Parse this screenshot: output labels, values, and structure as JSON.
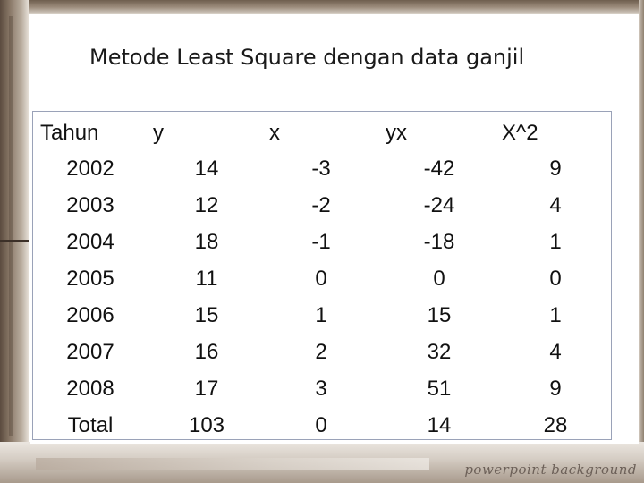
{
  "slide": {
    "title": "Metode Least Square dengan data ganjil",
    "watermark": "powerpoint background"
  },
  "table": {
    "headers": [
      "Tahun",
      "y",
      "x",
      "yx",
      "X^2"
    ],
    "rows": [
      {
        "tahun": "2002",
        "y": "14",
        "x": "-3",
        "yx": "-42",
        "x2": "9"
      },
      {
        "tahun": "2003",
        "y": "12",
        "x": "-2",
        "yx": "-24",
        "x2": "4"
      },
      {
        "tahun": "2004",
        "y": "18",
        "x": "-1",
        "yx": "-18",
        "x2": "1"
      },
      {
        "tahun": "2005",
        "y": "11",
        "x": "0",
        "yx": "0",
        "x2": "0"
      },
      {
        "tahun": "2006",
        "y": "15",
        "x": "1",
        "yx": "15",
        "x2": "1"
      },
      {
        "tahun": "2007",
        "y": "16",
        "x": "2",
        "yx": "32",
        "x2": "4"
      },
      {
        "tahun": "2008",
        "y": "17",
        "x": "3",
        "yx": "51",
        "x2": "9"
      }
    ],
    "total": {
      "tahun": "Total",
      "y": "103",
      "x": "0",
      "yx": "14",
      "x2": "28"
    }
  }
}
